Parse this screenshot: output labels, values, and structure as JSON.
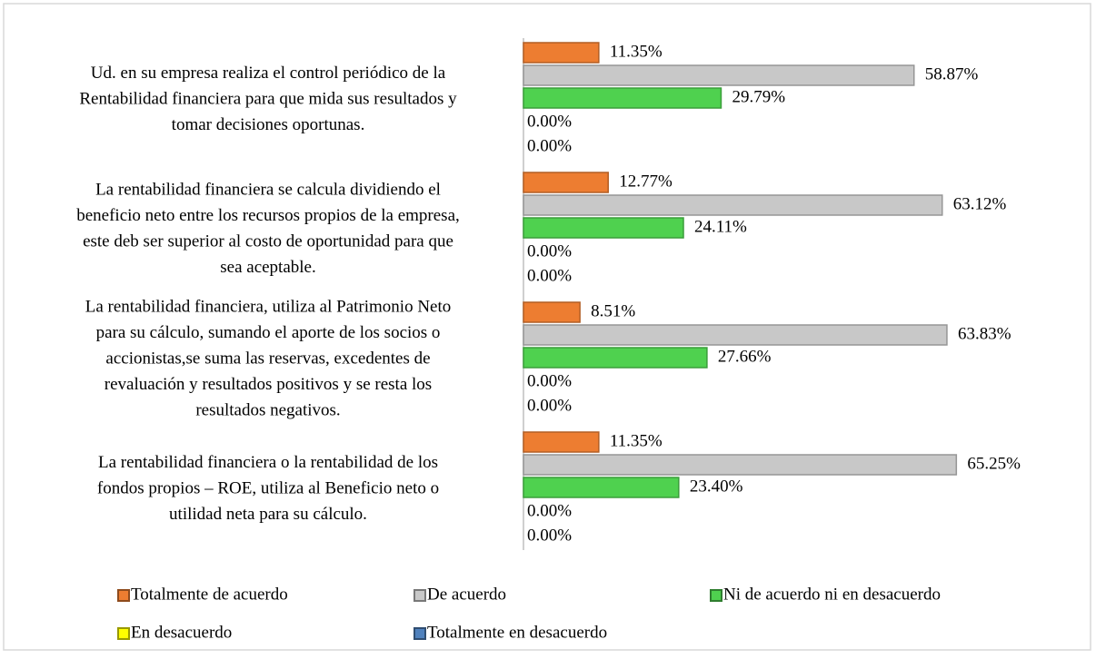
{
  "chart_data": {
    "type": "bar",
    "orientation": "horizontal",
    "categories": [
      [
        "Ud. en su empresa realiza el control periódico de la",
        "Rentabilidad financiera para que mida sus resultados y",
        "tomar decisiones oportunas."
      ],
      [
        "La rentabilidad financiera se calcula dividiendo el",
        "beneficio neto entre los recursos propios de la empresa,",
        "este deb ser superior al costo de oportunidad para que",
        "sea aceptable."
      ],
      [
        "La rentabilidad financiera, utiliza al Patrimonio Neto",
        "para su cálculo, sumando el aporte de los socios o",
        "accionistas,se suma las reservas, excedentes de",
        "revaluación y resultados positivos y se resta los",
        "resultados negativos."
      ],
      [
        "La rentabilidad financiera o la rentabilidad de los",
        "fondos propios – ROE, utiliza al Beneficio neto o",
        "utilidad neta para su cálculo."
      ]
    ],
    "series": [
      {
        "name": "Totalmente de acuerdo",
        "color": "#ed7d31",
        "values": [
          11.35,
          12.77,
          8.51,
          11.35
        ],
        "value_labels": [
          "11.35%",
          "12.77%",
          "8.51%",
          "11.35%"
        ]
      },
      {
        "name": "De acuerdo",
        "color": "#c8c8c8",
        "values": [
          58.87,
          63.12,
          63.83,
          65.25
        ],
        "value_labels": [
          "58.87%",
          "63.12%",
          "63.83%",
          "65.25%"
        ]
      },
      {
        "name": "Ni de acuerdo ni en desacuerdo",
        "color": "#4fd14f",
        "values": [
          29.79,
          24.11,
          27.66,
          23.4
        ],
        "value_labels": [
          "29.79%",
          "24.11%",
          "27.66%",
          "23.40%"
        ]
      },
      {
        "name": "En desacuerdo",
        "color": "#ffff00",
        "values": [
          0,
          0,
          0,
          0
        ],
        "value_labels": [
          "0.00%",
          "0.00%",
          "0.00%",
          "0.00%"
        ]
      },
      {
        "name": "Totalmente en desacuerdo",
        "color": "#4f81bd",
        "values": [
          0,
          0,
          0,
          0
        ],
        "value_labels": [
          "0.00%",
          "0.00%",
          "0.00%",
          "0.00%"
        ]
      }
    ]
  }
}
